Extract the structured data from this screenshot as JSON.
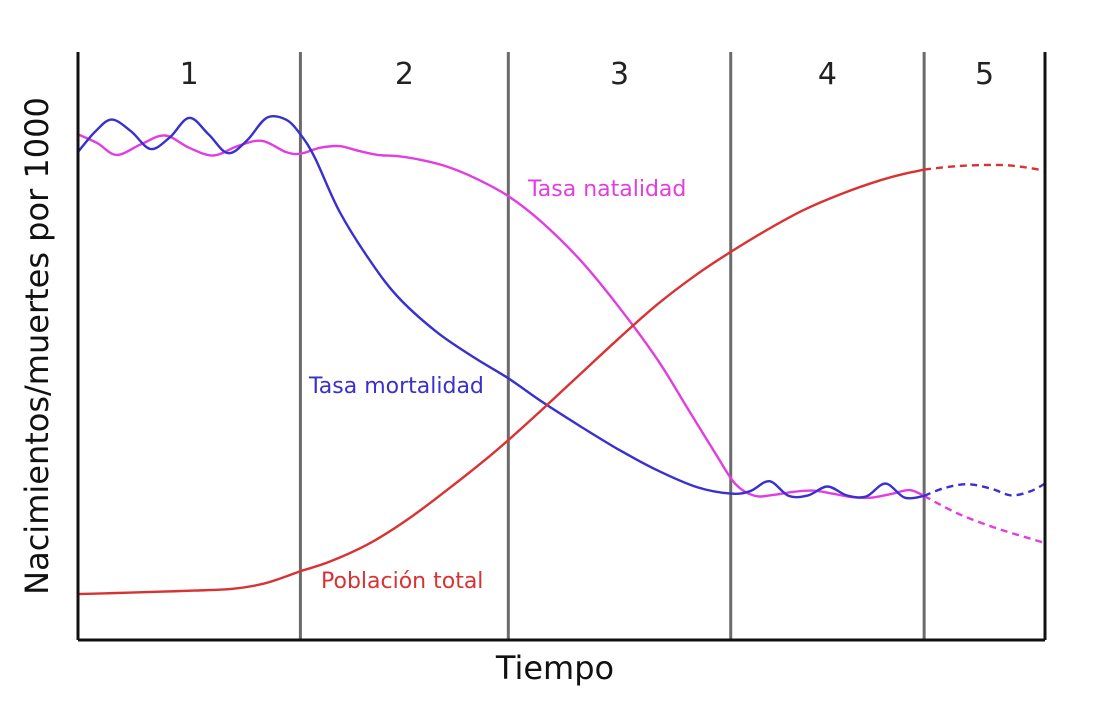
{
  "chart_data": {
    "type": "line",
    "title": "",
    "xlabel": "Tiempo",
    "ylabel": "Nacimientos/muertes por 1000",
    "xlim": [
      0,
      100
    ],
    "ylim": [
      0,
      100
    ],
    "grid": false,
    "ticks": false,
    "stages": [
      {
        "label": "1",
        "start": 0,
        "end": 23
      },
      {
        "label": "2",
        "start": 23,
        "end": 44.5
      },
      {
        "label": "3",
        "start": 44.5,
        "end": 67.5
      },
      {
        "label": "4",
        "start": 67.5,
        "end": 87.5
      },
      {
        "label": "5",
        "start": 87.5,
        "end": 100
      }
    ],
    "series": [
      {
        "name": "Tasa natalidad",
        "color": "#e23de0",
        "points": [
          [
            0,
            86
          ],
          [
            2,
            84.5
          ],
          [
            4,
            82.5
          ],
          [
            6.5,
            84.3
          ],
          [
            9,
            85.8
          ],
          [
            11.5,
            83.7
          ],
          [
            14,
            82.4
          ],
          [
            16.5,
            84
          ],
          [
            19,
            84.9
          ],
          [
            21.5,
            83
          ],
          [
            23,
            82.7
          ],
          [
            25,
            83.7
          ],
          [
            27,
            84
          ],
          [
            29,
            83.2
          ],
          [
            31,
            82.5
          ],
          [
            33,
            82.3
          ],
          [
            35,
            81.8
          ],
          [
            38,
            80.6
          ],
          [
            41,
            78.6
          ],
          [
            44.5,
            75.5
          ],
          [
            48,
            71
          ],
          [
            52,
            64.5
          ],
          [
            56,
            56.5
          ],
          [
            60,
            47.5
          ],
          [
            63,
            39.5
          ],
          [
            66,
            31.5
          ],
          [
            68,
            26.5
          ],
          [
            70,
            24.5
          ],
          [
            72,
            24.7
          ],
          [
            74,
            25.2
          ],
          [
            76,
            25.4
          ],
          [
            78,
            24.9
          ],
          [
            80,
            24.3
          ],
          [
            82,
            24.2
          ],
          [
            84,
            24.8
          ],
          [
            86,
            25.5
          ],
          [
            87.5,
            24.5
          ]
        ],
        "projection": [
          [
            87.5,
            24.5
          ],
          [
            91,
            21.5
          ],
          [
            95,
            19
          ],
          [
            100,
            16.5
          ]
        ]
      },
      {
        "name": "Tasa mortalidad",
        "color": "#3a2fcf",
        "points": [
          [
            0,
            83
          ],
          [
            1.8,
            86.5
          ],
          [
            3.5,
            88.5
          ],
          [
            5.5,
            86.5
          ],
          [
            7.5,
            83.5
          ],
          [
            9.5,
            85.5
          ],
          [
            11.5,
            88.8
          ],
          [
            13.5,
            86
          ],
          [
            15.5,
            82.8
          ],
          [
            17.5,
            85
          ],
          [
            19.5,
            88.8
          ],
          [
            21.5,
            88.5
          ],
          [
            23,
            86
          ],
          [
            24.5,
            82
          ],
          [
            27,
            73
          ],
          [
            30,
            65
          ],
          [
            33,
            58.5
          ],
          [
            37,
            52.5
          ],
          [
            41,
            48
          ],
          [
            44.5,
            44.5
          ],
          [
            48,
            40.5
          ],
          [
            52,
            36.3
          ],
          [
            56,
            32.3
          ],
          [
            60,
            28.8
          ],
          [
            64,
            26
          ],
          [
            67.5,
            24.9
          ],
          [
            69.5,
            25.3
          ],
          [
            71.5,
            27
          ],
          [
            73.5,
            24.5
          ],
          [
            75.5,
            24.6
          ],
          [
            77.5,
            26.1
          ],
          [
            79.5,
            24.6
          ],
          [
            81.5,
            24.4
          ],
          [
            83.5,
            26.6
          ],
          [
            85.5,
            24.2
          ],
          [
            87.5,
            24.5
          ]
        ],
        "projection": [
          [
            87.5,
            24.5
          ],
          [
            89.5,
            25.8
          ],
          [
            92,
            26.5
          ],
          [
            94.5,
            25.7
          ],
          [
            96.5,
            24.6
          ],
          [
            98.5,
            25.3
          ],
          [
            100,
            26.6
          ]
        ]
      },
      {
        "name": "Población total",
        "color": "#d93232",
        "points": [
          [
            0,
            7.8
          ],
          [
            4,
            8
          ],
          [
            8,
            8.2
          ],
          [
            12,
            8.4
          ],
          [
            16,
            8.7
          ],
          [
            19,
            9.5
          ],
          [
            21.5,
            10.8
          ],
          [
            23,
            11.7
          ],
          [
            26,
            13.3
          ],
          [
            30,
            16.3
          ],
          [
            34,
            20.4
          ],
          [
            38,
            25.3
          ],
          [
            42,
            30.5
          ],
          [
            44.5,
            34
          ],
          [
            48,
            39.2
          ],
          [
            52,
            45.3
          ],
          [
            56,
            51.4
          ],
          [
            60,
            57.2
          ],
          [
            64,
            62.2
          ],
          [
            67.5,
            66
          ],
          [
            71,
            69.5
          ],
          [
            75,
            73.1
          ],
          [
            79,
            75.9
          ],
          [
            83,
            78.2
          ],
          [
            85.5,
            79.3
          ],
          [
            87.5,
            80
          ]
        ],
        "projection": [
          [
            87.5,
            80
          ],
          [
            91,
            80.6
          ],
          [
            95,
            80.8
          ],
          [
            97.5,
            80.5
          ],
          [
            100,
            79.8
          ]
        ]
      }
    ]
  },
  "labels": {
    "birth_rate": "Tasa natalidad",
    "death_rate": "Tasa mortalidad",
    "population": "Población total"
  }
}
